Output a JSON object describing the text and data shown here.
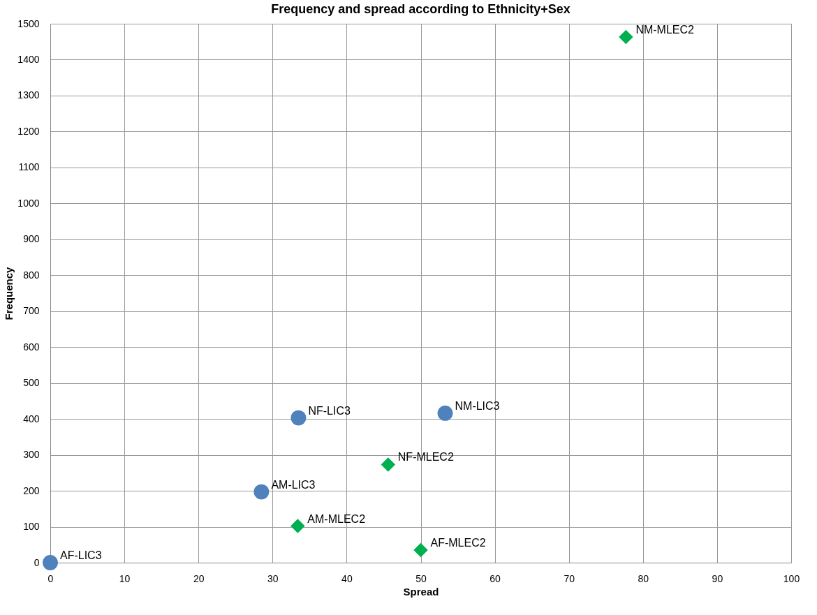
{
  "chart_data": {
    "type": "scatter",
    "title": "Frequency and spread according to Ethnicity+Sex",
    "xlabel": "Spread",
    "ylabel": "Frequency",
    "series": [
      {
        "color": "#4f81bd",
        "marker": "circle",
        "x": [
          0,
          28.5,
          33.5,
          53.3
        ],
        "values": [
          0,
          197,
          403,
          416
        ]
      },
      {
        "color": "#00b050",
        "marker": "diamond",
        "x": [
          77.7,
          45.6,
          33.4,
          50
        ],
        "values": [
          1463,
          273,
          102,
          35
        ]
      }
    ],
    "annotations": [
      {
        "text": "AF-LIC3",
        "x": 0,
        "y": 0
      },
      {
        "text": "AM-LIC3",
        "x": 28.5,
        "y": 197
      },
      {
        "text": "NF-LIC3",
        "x": 33.5,
        "y": 403
      },
      {
        "text": "NM-LIC3",
        "x": 53.3,
        "y": 416
      },
      {
        "text": "NM-MLEC2",
        "x": 77.7,
        "y": 1463
      },
      {
        "text": "NF-MLEC2",
        "x": 45.6,
        "y": 273
      },
      {
        "text": "AM-MLEC2",
        "x": 33.4,
        "y": 102
      },
      {
        "text": "AF-MLEC2",
        "x": 50,
        "y": 35
      }
    ],
    "xlim": [
      0,
      100
    ],
    "xticks": [
      0,
      10,
      20,
      30,
      40,
      50,
      60,
      70,
      80,
      90,
      100
    ],
    "ylim": [
      0,
      1500
    ],
    "yticks": [
      0,
      100,
      200,
      300,
      400,
      500,
      600,
      700,
      800,
      900,
      1000,
      1100,
      1200,
      1300,
      1400,
      1500
    ],
    "grid": true,
    "legend": false
  }
}
